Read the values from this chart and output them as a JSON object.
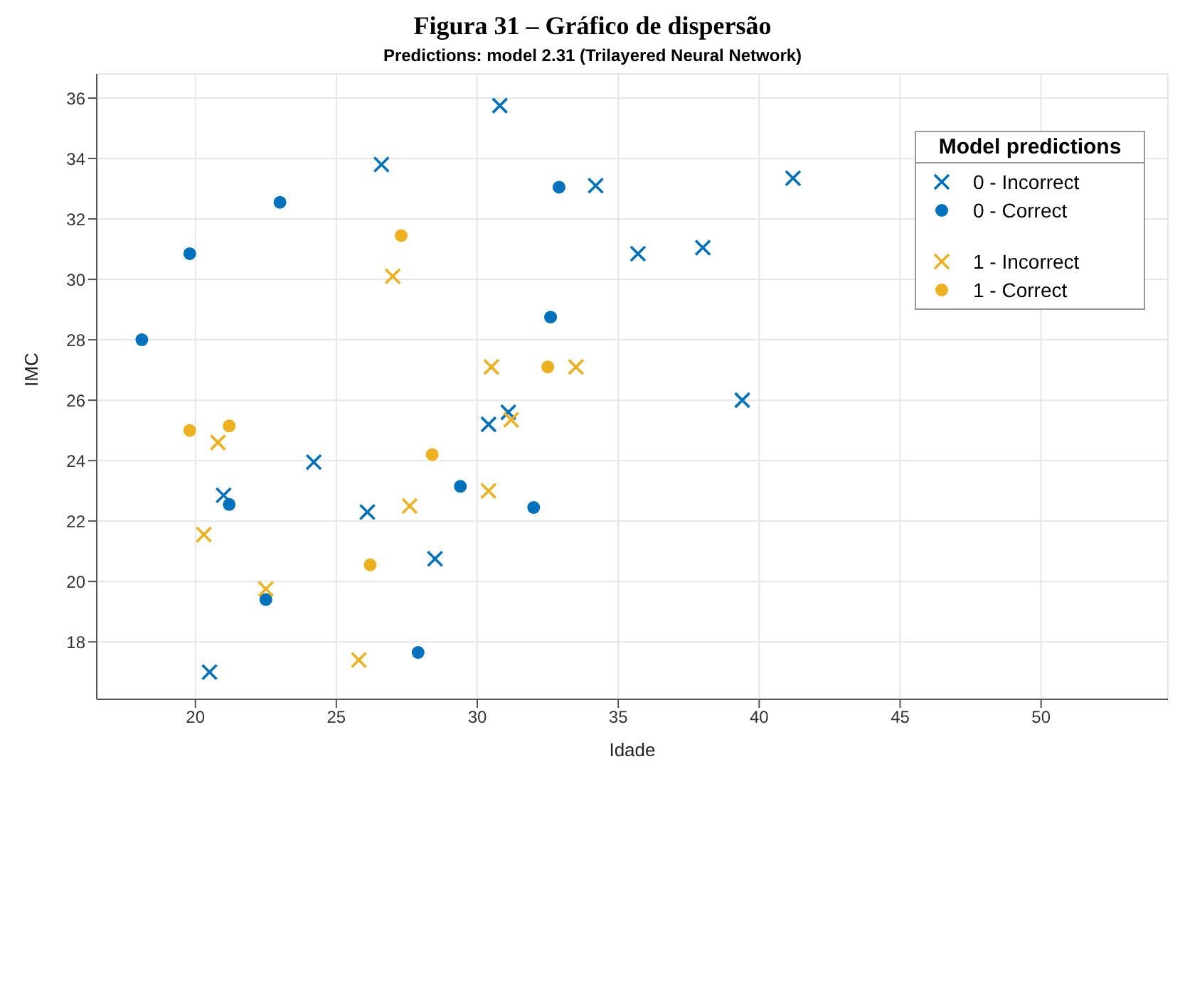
{
  "chart_data": {
    "type": "scatter",
    "title": "Predictions: model 2.31 (Trilayered Neural Network)",
    "annotations": [
      "Figura 31 – Gráfico de dispersão"
    ],
    "xlabel": "Idade",
    "ylabel": "IMC",
    "legend_title": "Model predictions",
    "legend": "top right",
    "grid": true,
    "xlim": [
      16.5,
      54.5
    ],
    "xticks": [
      20,
      25,
      30,
      35,
      40,
      45,
      50
    ],
    "ylim": [
      16.1,
      36.8
    ],
    "yticks": [
      18,
      20,
      22,
      24,
      26,
      28,
      30,
      32,
      34,
      36
    ],
    "series": [
      {
        "name": "0 - Incorrect",
        "color": "#0072bd",
        "marker": "cross",
        "x": [
          30.8,
          26.6,
          34.2,
          41.2,
          35.7,
          38.0,
          39.4,
          30.4,
          31.1,
          24.2,
          21.0,
          26.1,
          28.5,
          20.5
        ],
        "values": [
          35.75,
          33.8,
          33.1,
          33.35,
          30.85,
          31.05,
          26.0,
          25.2,
          25.6,
          23.95,
          22.85,
          22.3,
          20.75,
          17.0
        ]
      },
      {
        "name": "0 - Correct",
        "color": "#0072bd",
        "marker": "circle",
        "x": [
          18.1,
          19.8,
          23.0,
          32.9,
          32.6,
          21.2,
          29.4,
          32.0,
          22.5,
          27.9
        ],
        "values": [
          28.0,
          30.85,
          32.55,
          33.05,
          28.75,
          22.55,
          23.15,
          22.45,
          19.4,
          17.65
        ]
      },
      {
        "name": "1 - Incorrect",
        "color": "#edb120",
        "marker": "cross",
        "x": [
          27.0,
          30.5,
          33.5,
          31.2,
          20.8,
          20.3,
          27.6,
          30.4,
          22.5,
          25.8
        ],
        "values": [
          30.1,
          27.1,
          27.1,
          25.35,
          24.6,
          21.55,
          22.5,
          23.0,
          19.75,
          17.4
        ]
      },
      {
        "name": "1 - Correct",
        "color": "#edb120",
        "marker": "circle",
        "x": [
          27.3,
          32.5,
          19.8,
          21.2,
          28.4,
          26.2
        ],
        "values": [
          31.45,
          27.1,
          25.0,
          25.15,
          24.2,
          20.55
        ]
      }
    ]
  }
}
